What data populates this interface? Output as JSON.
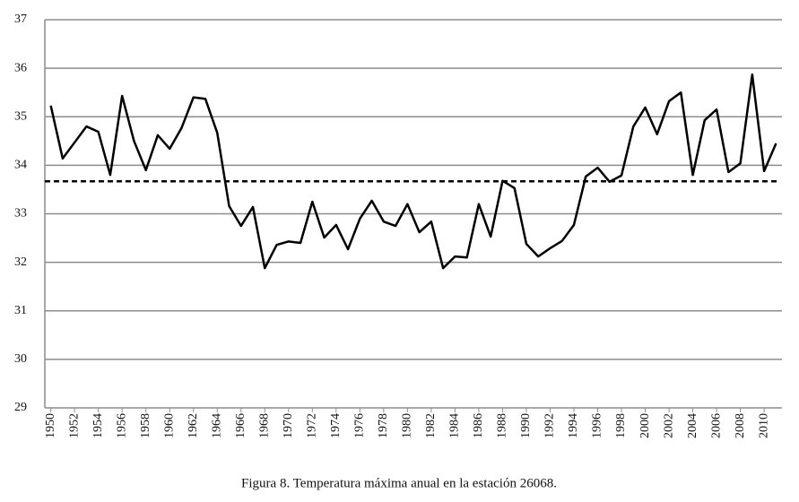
{
  "chart_data": {
    "type": "line",
    "title": "Figura 8. Temperatura máxima anual en la estación 26068.",
    "x": [
      1950,
      1951,
      1952,
      1953,
      1954,
      1955,
      1956,
      1957,
      1958,
      1959,
      1960,
      1961,
      1962,
      1963,
      1964,
      1965,
      1966,
      1967,
      1968,
      1969,
      1970,
      1971,
      1972,
      1973,
      1974,
      1975,
      1976,
      1977,
      1978,
      1979,
      1980,
      1981,
      1982,
      1983,
      1984,
      1985,
      1986,
      1987,
      1988,
      1989,
      1990,
      1991,
      1992,
      1993,
      1994,
      1995,
      1996,
      1997,
      1998,
      1999,
      2000,
      2001,
      2002,
      2003,
      2004,
      2005,
      2006,
      2007,
      2008,
      2009,
      2010,
      2011
    ],
    "series": [
      {
        "color": "#000000",
        "values": [
          35.23,
          34.14,
          34.47,
          34.8,
          34.69,
          33.8,
          35.43,
          34.5,
          33.9,
          34.62,
          34.34,
          34.77,
          35.4,
          35.37,
          34.67,
          33.16,
          32.75,
          33.14,
          31.88,
          32.36,
          32.43,
          32.4,
          33.25,
          32.51,
          32.77,
          32.27,
          32.9,
          33.27,
          32.84,
          32.75,
          33.2,
          32.62,
          32.84,
          31.88,
          32.12,
          32.1,
          33.2,
          32.53,
          33.68,
          33.53,
          32.38,
          32.12,
          32.29,
          32.44,
          32.77,
          33.77,
          33.95,
          33.66,
          33.79,
          34.8,
          35.19,
          34.64,
          35.32,
          35.5,
          33.8,
          34.93,
          35.15,
          33.86,
          34.04,
          35.87,
          33.88,
          34.45
        ]
      }
    ],
    "mean_line": {
      "value": 33.67,
      "style": "dashed",
      "color": "#000000"
    },
    "xlim": [
      1949.5,
      2011.5
    ],
    "xticks": [
      1950,
      1952,
      1954,
      1956,
      1958,
      1960,
      1962,
      1964,
      1966,
      1968,
      1970,
      1972,
      1974,
      1976,
      1978,
      1980,
      1982,
      1984,
      1986,
      1988,
      1990,
      1992,
      1994,
      1996,
      1998,
      2000,
      2002,
      2004,
      2006,
      2008,
      2010
    ],
    "ylim": [
      29,
      37
    ],
    "yticks": [
      29,
      30,
      31,
      32,
      33,
      34,
      35,
      36,
      37
    ],
    "grid": true
  }
}
